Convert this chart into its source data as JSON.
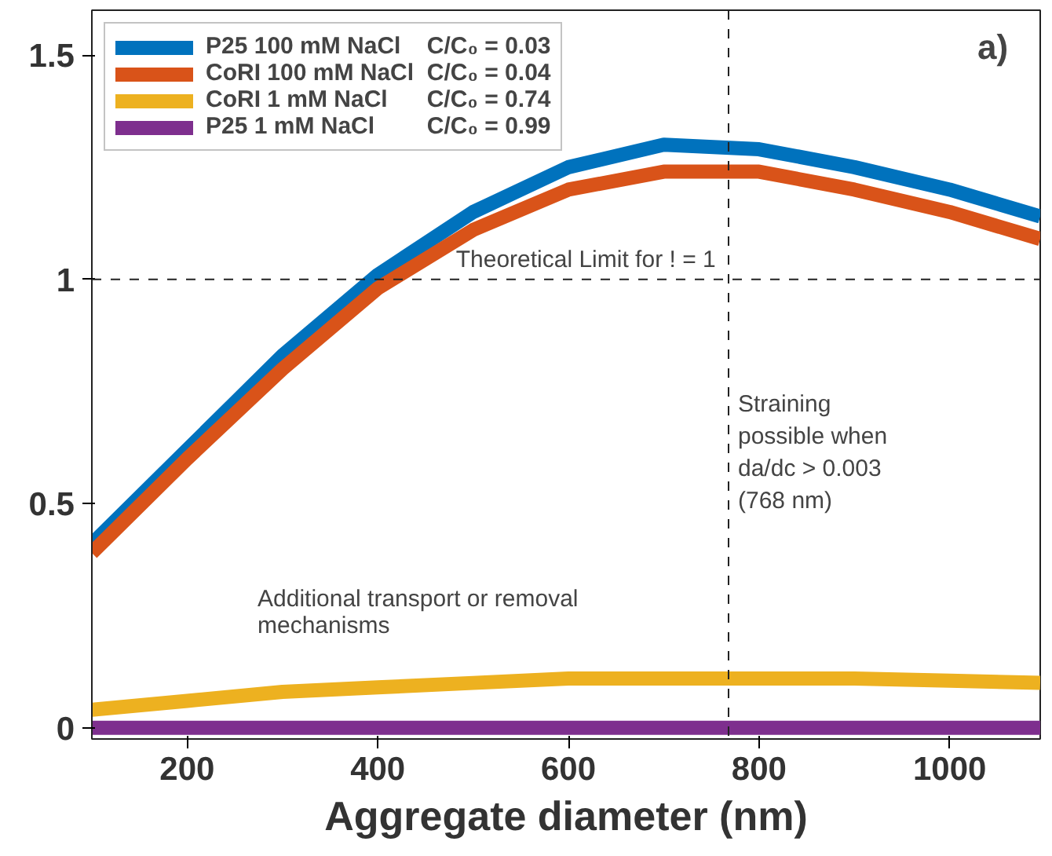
{
  "chart_data": {
    "type": "line",
    "xlabel": "Aggregate diameter (nm)",
    "x": [
      100,
      200,
      300,
      400,
      500,
      600,
      700,
      800,
      900,
      1000,
      1095
    ],
    "series": [
      {
        "name": "P25 100 mM NaCl    C/C₀ = 0.03",
        "color": "#0072bd",
        "values": [
          0.41,
          0.62,
          0.83,
          1.01,
          1.15,
          1.25,
          1.3,
          1.29,
          1.25,
          1.2,
          1.14
        ]
      },
      {
        "name": "CoRI 100 mM NaCl  C/C₀ = 0.04",
        "color": "#d95319",
        "values": [
          0.39,
          0.6,
          0.8,
          0.98,
          1.11,
          1.2,
          1.24,
          1.24,
          1.2,
          1.15,
          1.09
        ]
      },
      {
        "name": "CoRI 1 mM NaCl      C/C₀ = 0.74",
        "color": "#edb120",
        "values": [
          0.04,
          0.06,
          0.08,
          0.09,
          0.1,
          0.11,
          0.11,
          0.11,
          0.11,
          0.105,
          0.1
        ]
      },
      {
        "name": "P25 1 mM NaCl        C/C₀ = 0.99",
        "color": "#7e2f8e",
        "values": [
          0,
          0,
          0,
          0,
          0,
          0,
          0,
          0,
          0,
          0,
          0
        ]
      }
    ],
    "xlim": [
      100,
      1095
    ],
    "ylim": [
      -0.025,
      1.6
    ],
    "xticks": [
      200,
      400,
      600,
      800,
      1000
    ],
    "yticks": [
      0,
      0.5,
      1,
      1.5
    ],
    "ref_lines": [
      {
        "axis": "y",
        "value": 1,
        "label": "Theoretical Limit for !  = 1",
        "line_style": "dashed"
      },
      {
        "axis": "x",
        "value": 768,
        "label": "Straining\npossible when\nda/dc > 0.003\n(768 nm)",
        "line_style": "dashed"
      }
    ],
    "annotations": [
      "Additional transport or removal\nmechanisms",
      "a)"
    ],
    "legend": "top left",
    "grid": false,
    "line_style": "solid",
    "marker": "none"
  }
}
